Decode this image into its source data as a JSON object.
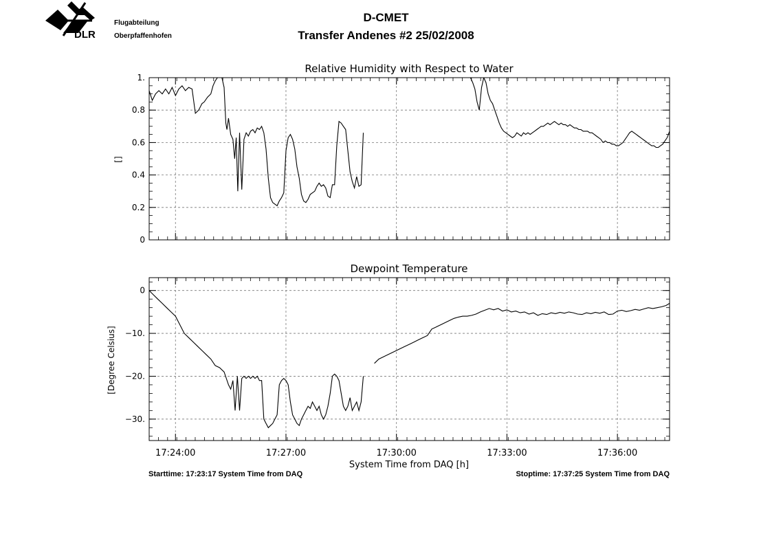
{
  "header": {
    "logo_text": "DLR",
    "department_line1": "Flugabteilung",
    "department_line2": "Oberpfaffenhofen",
    "title": "D-CMET",
    "subtitle": "Transfer Andenes #2   25/02/2008"
  },
  "footer": {
    "start": "Starttime: 17:23:17 System Time from DAQ",
    "stop": "Stoptime: 17:37:25 System Time from DAQ"
  },
  "chart_data": [
    {
      "type": "line",
      "title": "Relative Humidity with Respect to Water",
      "ylabel": "[]",
      "xlabel": "",
      "xlim": [
        17.3881,
        17.6236
      ],
      "ylim": [
        0,
        1
      ],
      "grid": true,
      "yticks": [
        0,
        0.2,
        0.4,
        0.6,
        0.8,
        1
      ],
      "ytick_labels": [
        "0",
        "0.2",
        "0.4",
        "0.6",
        "0.8",
        "1."
      ],
      "xticks": [
        17.4,
        17.45,
        17.5,
        17.55,
        17.6
      ],
      "series": [
        {
          "x": [
            17.3881,
            17.3895,
            17.391,
            17.3925,
            17.394,
            17.3955,
            17.397,
            17.3985,
            17.4,
            17.4015,
            17.403,
            17.4045,
            17.406,
            17.4075,
            17.409,
            17.4105,
            17.412,
            17.413,
            17.4145,
            17.416,
            17.417,
            17.418,
            17.419,
            17.42,
            17.421,
            17.422,
            17.4228,
            17.4233,
            17.424,
            17.425,
            17.426,
            17.4268,
            17.4275,
            17.4282,
            17.429,
            17.43,
            17.431,
            17.432,
            17.433,
            17.434,
            17.435,
            17.436,
            17.437,
            17.438,
            17.439,
            17.44,
            17.441,
            17.442,
            17.443,
            17.444,
            17.445,
            17.446,
            17.447,
            17.448,
            17.449,
            17.45,
            17.451,
            17.452,
            17.453,
            17.454,
            17.455,
            17.456,
            17.457,
            17.458,
            17.459,
            17.46,
            17.461,
            17.462,
            17.463,
            17.464,
            17.465,
            17.466,
            17.467,
            17.468,
            17.469,
            17.47,
            17.471,
            17.472,
            17.473,
            17.474,
            17.475,
            17.476,
            17.477,
            17.478,
            17.479,
            17.48,
            17.481,
            17.482,
            17.483,
            17.484,
            17.485,
            17.486,
            17.487,
            17.488,
            17.489,
            17.49,
            17.491,
            17.492,
            17.493,
            17.494,
            17.495,
            17.496,
            17.497,
            17.498,
            17.499,
            17.5,
            17.501,
            17.502,
            17.503,
            17.504,
            17.505,
            17.506,
            17.507,
            17.508,
            17.509
          ],
          "y": [
            0.92,
            0.86,
            0.9,
            0.92,
            0.9,
            0.93,
            0.9,
            0.94,
            0.89,
            0.93,
            0.95,
            0.92,
            0.94,
            0.93,
            0.78,
            0.8,
            0.84,
            0.85,
            0.88,
            0.9,
            0.95,
            0.98,
            1.0,
            1.0,
            1.0,
            0.94,
            0.72,
            0.68,
            0.75,
            0.65,
            0.62,
            0.5,
            0.63,
            0.3,
            0.66,
            0.31,
            0.62,
            0.66,
            0.64,
            0.67,
            0.68,
            0.66,
            0.69,
            0.68,
            0.7,
            0.66,
            0.56,
            0.38,
            0.26,
            0.23,
            0.22,
            0.21,
            0.24,
            0.26,
            0.29,
            0.55,
            0.63,
            0.65,
            0.62,
            0.56,
            0.45,
            0.38,
            0.28,
            0.24,
            0.23,
            0.25,
            0.28,
            0.29,
            0.3,
            0.33,
            0.35,
            0.33,
            0.34,
            0.32,
            0.27,
            0.26,
            0.34,
            0.34,
            0.58,
            0.73,
            0.72,
            0.7,
            0.68,
            0.55,
            0.42,
            0.36,
            0.32,
            0.39,
            0.33,
            0.34,
            0.66,
            null,
            null,
            null,
            null,
            null,
            null,
            null,
            null,
            null,
            null,
            null,
            null,
            null,
            null,
            null,
            null,
            null,
            null,
            null,
            null,
            null,
            null,
            null,
            null
          ]
        },
        {
          "x": [
            17.5335,
            17.5345,
            17.5355,
            17.5365,
            17.5375,
            17.5385,
            17.5395,
            17.5405,
            17.5415,
            17.5425,
            17.5435,
            17.5445,
            17.5455,
            17.5465,
            17.5475,
            17.5485,
            17.5495,
            17.5505,
            17.5515,
            17.5525,
            17.5535,
            17.5545,
            17.5555,
            17.5565,
            17.5575,
            17.5585,
            17.5595,
            17.5605,
            17.5615,
            17.5625,
            17.5635,
            17.5645,
            17.5655,
            17.5665,
            17.5675,
            17.5685,
            17.5695,
            17.5705,
            17.5715,
            17.5725,
            17.5735,
            17.5745,
            17.5755,
            17.5765,
            17.5775,
            17.5785,
            17.5795,
            17.5805,
            17.5815,
            17.5825,
            17.5835,
            17.5845,
            17.5855,
            17.5865,
            17.5875,
            17.5885,
            17.5895,
            17.5905,
            17.5915,
            17.5925,
            17.5935,
            17.5945,
            17.5955,
            17.5965,
            17.5975,
            17.5985,
            17.5995,
            17.6005,
            17.6015,
            17.6025,
            17.6035,
            17.6045,
            17.6055,
            17.6065,
            17.6075,
            17.6085,
            17.6095,
            17.6105,
            17.6115,
            17.6125,
            17.6135,
            17.6145,
            17.6155,
            17.6165,
            17.6175,
            17.6185,
            17.6195,
            17.6205,
            17.6215,
            17.6225,
            17.6236
          ],
          "y": [
            1.0,
            0.97,
            0.93,
            0.85,
            0.8,
            0.94,
            1.0,
            0.97,
            0.9,
            0.86,
            0.84,
            0.8,
            0.76,
            0.72,
            0.69,
            0.67,
            0.66,
            0.65,
            0.64,
            0.63,
            0.64,
            0.66,
            0.65,
            0.64,
            0.66,
            0.65,
            0.66,
            0.65,
            0.66,
            0.67,
            0.68,
            0.69,
            0.7,
            0.7,
            0.71,
            0.72,
            0.71,
            0.72,
            0.73,
            0.72,
            0.71,
            0.72,
            0.71,
            0.71,
            0.7,
            0.71,
            0.7,
            0.69,
            0.69,
            0.68,
            0.68,
            0.67,
            0.67,
            0.67,
            0.66,
            0.66,
            0.65,
            0.64,
            0.63,
            0.62,
            0.6,
            0.61,
            0.6,
            0.6,
            0.59,
            0.59,
            0.58,
            0.58,
            0.59,
            0.6,
            0.62,
            0.64,
            0.66,
            0.67,
            0.66,
            0.65,
            0.64,
            0.63,
            0.62,
            0.61,
            0.6,
            0.59,
            0.58,
            0.58,
            0.57,
            0.57,
            0.58,
            0.59,
            0.61,
            0.63,
            0.67
          ]
        }
      ]
    },
    {
      "type": "line",
      "title": "Dewpoint Temperature",
      "ylabel": "[Degree Celsius]",
      "xlabel": "System Time from DAQ [h]",
      "xlim": [
        17.3881,
        17.6236
      ],
      "ylim": [
        -35,
        3
      ],
      "grid": true,
      "yticks": [
        0,
        -10,
        -20,
        -30
      ],
      "ytick_labels": [
        "0",
        "−10.",
        "−20.",
        "−30."
      ],
      "xticks": [
        17.4,
        17.45,
        17.5,
        17.55,
        17.6
      ],
      "xtick_labels": [
        "17:24:00",
        "17:27:00",
        "17:30:00",
        "17:33:00",
        "17:36:00"
      ],
      "series": [
        {
          "x": [
            17.3881,
            17.39,
            17.392,
            17.394,
            17.396,
            17.398,
            17.4,
            17.402,
            17.404,
            17.406,
            17.408,
            17.41,
            17.412,
            17.414,
            17.416,
            17.418,
            17.42,
            17.422,
            17.424,
            17.425,
            17.426,
            17.427,
            17.428,
            17.429,
            17.43,
            17.431,
            17.432,
            17.433,
            17.434,
            17.435,
            17.436,
            17.437,
            17.438,
            17.439,
            17.44,
            17.441,
            17.442,
            17.443,
            17.444,
            17.445,
            17.446,
            17.447,
            17.448,
            17.449,
            17.45,
            17.451,
            17.452,
            17.453,
            17.454,
            17.455,
            17.456,
            17.457,
            17.458,
            17.459,
            17.46,
            17.461,
            17.462,
            17.463,
            17.464,
            17.465,
            17.466,
            17.467,
            17.468,
            17.469,
            17.47,
            17.471,
            17.472,
            17.473,
            17.474,
            17.475,
            17.476,
            17.477,
            17.478,
            17.479,
            17.48,
            17.481,
            17.482,
            17.483,
            17.484,
            17.485,
            17.486,
            17.487
          ],
          "y": [
            0,
            -1,
            -2,
            -3,
            -4,
            -5,
            -6,
            -8,
            -10,
            -11,
            -12,
            -13,
            -14,
            -15,
            -16,
            -17.5,
            -18,
            -19,
            -22,
            -23,
            -21,
            -28,
            -20,
            -28,
            -20.5,
            -20,
            -20.5,
            -20,
            -20.5,
            -20,
            -20.5,
            -20,
            -21,
            -21,
            -30,
            -31,
            -32,
            -31.5,
            -31,
            -30,
            -29,
            -22,
            -21,
            -20.5,
            -21,
            -22,
            -26,
            -29,
            -30,
            -31,
            -31.5,
            -30,
            -29,
            -28,
            -27,
            -27.5,
            -26,
            -27,
            -28,
            -27,
            -29,
            -30,
            -29,
            -27,
            -24,
            -20,
            -19.5,
            -20,
            -21,
            -24,
            -27,
            -28,
            -27,
            -25,
            -28,
            -27,
            -26,
            -28,
            -26,
            -20,
            null,
            null
          ]
        },
        {
          "x": [
            17.49,
            17.492,
            17.494,
            17.496,
            17.498,
            17.5,
            17.502,
            17.504,
            17.506,
            17.508,
            17.51,
            17.512,
            17.514,
            17.516,
            17.518,
            17.52,
            17.522,
            17.524,
            17.526,
            17.528,
            17.53,
            17.532,
            17.534,
            17.536,
            17.538,
            17.54,
            17.542,
            17.544,
            17.546,
            17.548,
            17.55,
            17.552,
            17.554,
            17.556,
            17.558,
            17.56,
            17.562,
            17.564,
            17.566,
            17.568,
            17.57,
            17.572,
            17.574,
            17.576,
            17.578,
            17.58,
            17.582,
            17.584,
            17.586,
            17.588,
            17.59,
            17.592,
            17.594,
            17.596,
            17.598,
            17.6,
            17.602,
            17.604,
            17.606,
            17.608,
            17.61,
            17.612,
            17.614,
            17.616,
            17.618,
            17.62,
            17.622,
            17.6236
          ],
          "y": [
            -17,
            -16,
            -15.5,
            -15,
            -14.5,
            -14,
            -13.5,
            -13,
            -12.5,
            -12,
            -11.5,
            -11,
            -10.5,
            -9,
            -8.5,
            -8,
            -7.5,
            -7,
            -6.5,
            -6.2,
            -6,
            -6,
            -5.8,
            -5.5,
            -5,
            -4.6,
            -4.2,
            -4.5,
            -4.2,
            -4.8,
            -4.5,
            -5,
            -4.8,
            -5.2,
            -5,
            -5.5,
            -5.2,
            -5.8,
            -5.4,
            -5.6,
            -5.2,
            -5.4,
            -5.1,
            -5.3,
            -5.0,
            -5.2,
            -5.5,
            -5.6,
            -5.2,
            -5.4,
            -5.1,
            -5.3,
            -5.0,
            -5.6,
            -5.5,
            -4.8,
            -4.6,
            -4.9,
            -4.7,
            -4.4,
            -4.6,
            -4.3,
            -4.0,
            -4.2,
            -4.0,
            -3.8,
            -3.5,
            -3.0
          ]
        }
      ]
    }
  ]
}
